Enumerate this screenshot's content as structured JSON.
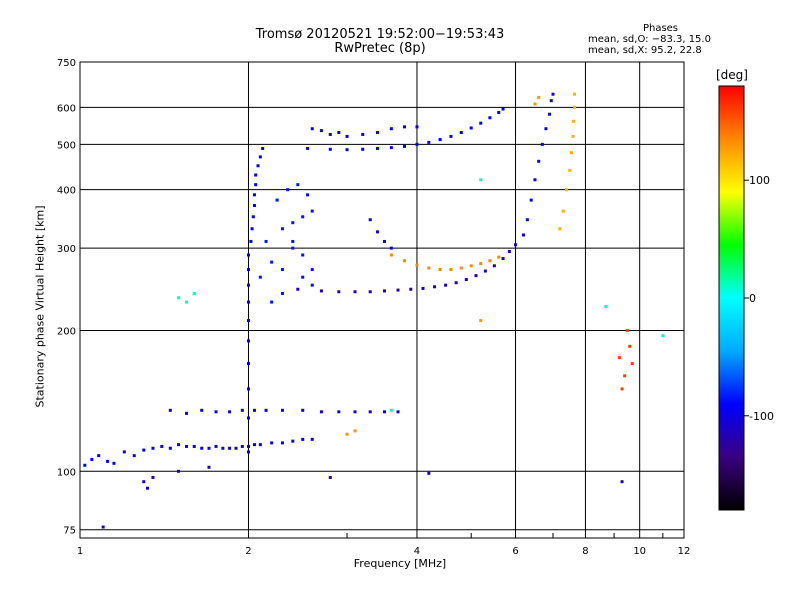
{
  "chart_data": {
    "type": "scatter",
    "title": "Tromsø 20120521 19:52:00−19:53:43",
    "subtitle": "RwPretec (8p)",
    "xlabel": "Frequency [MHz]",
    "ylabel": "Stationary phase Virtual Height [km]",
    "x_scale": "log",
    "y_scale": "log",
    "xlim": [
      1,
      12
    ],
    "ylim": [
      72,
      750
    ],
    "x_ticks": [
      1,
      2,
      4,
      6,
      8,
      10,
      12
    ],
    "y_ticks": [
      75,
      100,
      200,
      300,
      400,
      500,
      600,
      750
    ],
    "grid": true,
    "phases_box": {
      "title": "Phases",
      "line1": "mean, sd,O: −83.3, 15.0",
      "line2": "mean, sd,X:  95.2, 22.8"
    },
    "colorbar": {
      "unit": "[deg]",
      "range": [
        -180,
        180
      ],
      "ticks": [
        100,
        0,
        -100
      ],
      "colormap": [
        "#000000",
        "#3a0080",
        "#0000ff",
        "#00aaff",
        "#00ffff",
        "#00ff00",
        "#ffff00",
        "#ff8800",
        "#ff0000"
      ]
    },
    "series": [
      {
        "phase": -95,
        "points": [
          [
            1.02,
            103
          ],
          [
            1.05,
            106
          ],
          [
            1.08,
            108
          ],
          [
            1.12,
            105
          ],
          [
            1.15,
            104
          ],
          [
            1.2,
            110
          ],
          [
            1.25,
            108
          ],
          [
            1.3,
            111
          ],
          [
            1.35,
            112
          ],
          [
            1.4,
            113
          ],
          [
            1.45,
            112
          ],
          [
            1.5,
            114
          ],
          [
            1.55,
            113
          ],
          [
            1.6,
            113
          ],
          [
            1.65,
            112
          ],
          [
            1.7,
            112
          ],
          [
            1.75,
            113
          ],
          [
            1.8,
            112
          ],
          [
            1.85,
            112
          ],
          [
            1.9,
            112
          ],
          [
            1.95,
            113
          ],
          [
            2.0,
            113
          ],
          [
            2.05,
            114
          ],
          [
            2.1,
            114
          ],
          [
            2.2,
            115
          ],
          [
            2.3,
            115
          ],
          [
            2.4,
            116
          ],
          [
            2.5,
            117
          ],
          [
            2.6,
            117
          ]
        ]
      },
      {
        "phase": -100,
        "points": [
          [
            1.45,
            135
          ],
          [
            1.55,
            133
          ],
          [
            1.65,
            135
          ],
          [
            1.75,
            134
          ],
          [
            1.85,
            134
          ],
          [
            1.95,
            135
          ],
          [
            2.05,
            135
          ],
          [
            2.15,
            135
          ],
          [
            2.3,
            135
          ],
          [
            2.5,
            135
          ],
          [
            2.7,
            134
          ],
          [
            2.9,
            134
          ],
          [
            3.1,
            134
          ],
          [
            3.3,
            134
          ],
          [
            3.5,
            134
          ],
          [
            3.7,
            134
          ]
        ]
      },
      {
        "phase": -90,
        "points": [
          [
            2.0,
            110
          ],
          [
            2.0,
            130
          ],
          [
            2.0,
            150
          ],
          [
            2.0,
            170
          ],
          [
            2.0,
            190
          ],
          [
            2.0,
            210
          ],
          [
            2.0,
            230
          ],
          [
            2.0,
            250
          ],
          [
            2.0,
            270
          ],
          [
            2.0,
            290
          ],
          [
            2.02,
            310
          ],
          [
            2.03,
            330
          ],
          [
            2.04,
            350
          ],
          [
            2.05,
            370
          ],
          [
            2.05,
            390
          ],
          [
            2.06,
            410
          ],
          [
            2.06,
            430
          ],
          [
            2.08,
            450
          ],
          [
            2.1,
            470
          ],
          [
            2.12,
            490
          ]
        ]
      },
      {
        "phase": -85,
        "points": [
          [
            2.2,
            280
          ],
          [
            2.3,
            270
          ],
          [
            2.4,
            300
          ],
          [
            2.5,
            260
          ],
          [
            2.6,
            250
          ],
          [
            2.3,
            330
          ],
          [
            2.4,
            340
          ],
          [
            2.5,
            350
          ],
          [
            2.6,
            360
          ],
          [
            2.3,
            240
          ],
          [
            2.2,
            230
          ],
          [
            2.4,
            310
          ],
          [
            2.5,
            290
          ],
          [
            2.6,
            270
          ],
          [
            2.1,
            260
          ],
          [
            2.15,
            310
          ],
          [
            2.25,
            380
          ],
          [
            2.35,
            400
          ],
          [
            2.45,
            410
          ],
          [
            2.55,
            390
          ]
        ]
      },
      {
        "phase": -110,
        "points": [
          [
            2.45,
            245
          ],
          [
            2.7,
            243
          ],
          [
            2.9,
            242
          ],
          [
            3.1,
            242
          ],
          [
            3.3,
            242
          ],
          [
            3.5,
            243
          ],
          [
            3.7,
            244
          ],
          [
            3.9,
            245
          ],
          [
            4.1,
            246
          ],
          [
            4.3,
            248
          ],
          [
            4.5,
            250
          ],
          [
            4.7,
            253
          ],
          [
            4.9,
            257
          ],
          [
            5.1,
            262
          ],
          [
            5.3,
            268
          ],
          [
            5.5,
            275
          ],
          [
            5.7,
            285
          ],
          [
            5.85,
            295
          ],
          [
            6.0,
            305
          ]
        ]
      },
      {
        "phase": 135,
        "points": [
          [
            3.6,
            290
          ],
          [
            3.8,
            282
          ],
          [
            4.0,
            276
          ],
          [
            4.2,
            272
          ],
          [
            4.4,
            270
          ],
          [
            4.6,
            270
          ],
          [
            4.8,
            272
          ],
          [
            5.0,
            275
          ],
          [
            5.2,
            278
          ],
          [
            5.4,
            282
          ],
          [
            5.6,
            287
          ]
        ]
      },
      {
        "phase": -105,
        "points": [
          [
            3.3,
            345
          ],
          [
            3.4,
            325
          ],
          [
            3.5,
            310
          ],
          [
            3.6,
            300
          ]
        ]
      },
      {
        "phase": -90,
        "points": [
          [
            2.55,
            490
          ],
          [
            2.8,
            488
          ],
          [
            3.0,
            487
          ],
          [
            3.2,
            488
          ],
          [
            3.4,
            490
          ],
          [
            3.6,
            492
          ],
          [
            3.8,
            495
          ],
          [
            4.0,
            500
          ],
          [
            4.2,
            505
          ],
          [
            4.4,
            512
          ],
          [
            4.6,
            520
          ],
          [
            4.8,
            530
          ],
          [
            5.0,
            542
          ],
          [
            5.2,
            555
          ],
          [
            5.4,
            570
          ],
          [
            5.6,
            585
          ],
          [
            5.7,
            595
          ]
        ]
      },
      {
        "phase": -95,
        "points": [
          [
            2.6,
            540
          ],
          [
            2.7,
            535
          ],
          [
            2.8,
            525
          ],
          [
            2.9,
            530
          ],
          [
            3.0,
            520
          ],
          [
            3.2,
            525
          ],
          [
            3.4,
            530
          ],
          [
            3.6,
            540
          ],
          [
            3.8,
            545
          ],
          [
            4.0,
            545
          ]
        ]
      },
      {
        "phase": -100,
        "points": [
          [
            6.2,
            320
          ],
          [
            6.3,
            345
          ],
          [
            6.4,
            380
          ],
          [
            6.5,
            420
          ],
          [
            6.6,
            460
          ],
          [
            6.7,
            500
          ],
          [
            6.8,
            540
          ],
          [
            6.9,
            580
          ],
          [
            6.95,
            620
          ],
          [
            7.0,
            640
          ]
        ]
      },
      {
        "phase": 120,
        "points": [
          [
            7.2,
            330
          ],
          [
            7.3,
            360
          ],
          [
            7.4,
            400
          ],
          [
            7.5,
            440
          ],
          [
            7.55,
            480
          ],
          [
            7.6,
            520
          ],
          [
            7.62,
            560
          ],
          [
            7.65,
            600
          ],
          [
            7.65,
            640
          ]
        ]
      },
      {
        "phase": 130,
        "points": [
          [
            6.5,
            610
          ],
          [
            6.6,
            630
          ],
          [
            3.0,
            120
          ],
          [
            3.1,
            122
          ],
          [
            5.2,
            210
          ]
        ]
      },
      {
        "phase": 160,
        "points": [
          [
            9.5,
            200
          ],
          [
            9.6,
            185
          ],
          [
            9.7,
            170
          ],
          [
            9.4,
            160
          ],
          [
            9.3,
            150
          ],
          [
            9.2,
            175
          ]
        ]
      },
      {
        "phase": 10,
        "points": [
          [
            1.5,
            235
          ],
          [
            1.6,
            240
          ],
          [
            1.55,
            230
          ],
          [
            3.6,
            135
          ],
          [
            5.2,
            420
          ],
          [
            8.7,
            225
          ],
          [
            11.0,
            195
          ]
        ]
      },
      {
        "phase": -110,
        "points": [
          [
            1.3,
            95
          ],
          [
            1.32,
            92
          ],
          [
            1.35,
            97
          ],
          [
            1.5,
            100
          ],
          [
            1.7,
            102
          ],
          [
            2.8,
            97
          ],
          [
            4.2,
            99
          ],
          [
            9.3,
            95
          ],
          [
            1.1,
            76
          ]
        ]
      }
    ]
  }
}
